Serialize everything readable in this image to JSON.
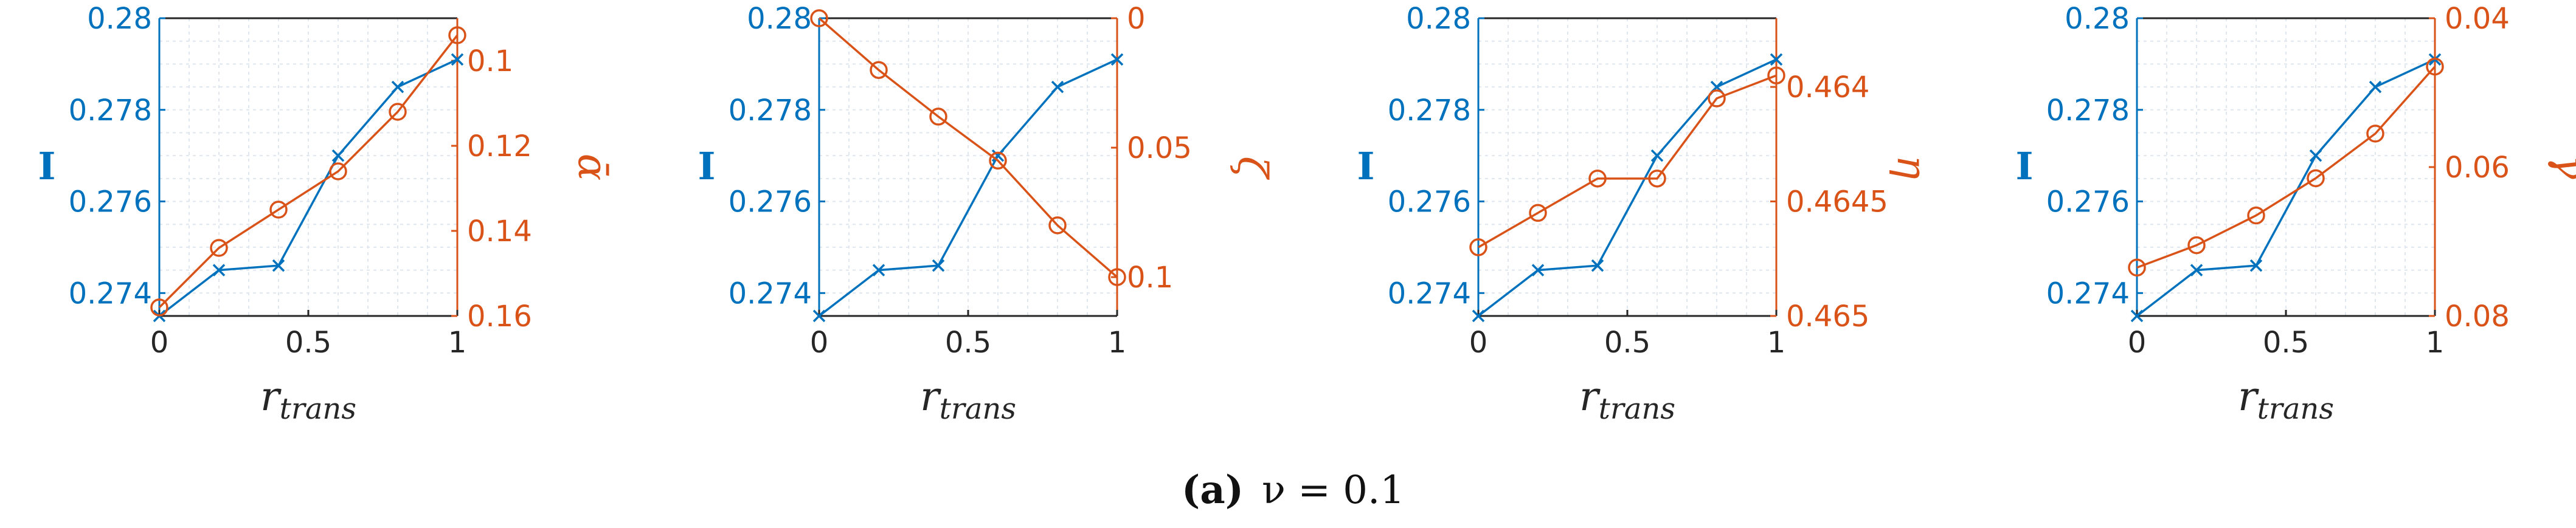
{
  "caption": {
    "label": "(a)",
    "text": "ν = 0.1"
  },
  "colors": {
    "left": "#0072BD",
    "right": "#D95319"
  },
  "chart_data": [
    {
      "type": "line",
      "xlabel": "r_trans",
      "ylabel_left": "I",
      "ylabel_right": "ᾱ",
      "x": [
        0,
        0.2,
        0.4,
        0.6,
        0.8,
        1
      ],
      "xticks": [
        "0",
        "0.5",
        "1"
      ],
      "left_ylim": [
        0.2735,
        0.28
      ],
      "left_yticks": [
        "0.274",
        "0.276",
        "0.278",
        "0.28"
      ],
      "right_ylim": [
        0.16,
        0.09
      ],
      "right_reversed": true,
      "right_yticks": [
        "0.1",
        "0.12",
        "0.14",
        "0.16"
      ],
      "left_marker": "x",
      "right_marker": "o",
      "series": [
        {
          "axis": "left",
          "values": [
            0.2735,
            0.2745,
            0.2746,
            0.277,
            0.2785,
            0.2791
          ]
        },
        {
          "axis": "right",
          "values": [
            0.158,
            0.144,
            0.135,
            0.126,
            0.112,
            0.094
          ]
        }
      ]
    },
    {
      "type": "line",
      "xlabel": "r_trans",
      "ylabel_left": "I",
      "ylabel_right": "ζ",
      "x": [
        0,
        0.2,
        0.4,
        0.6,
        0.8,
        1
      ],
      "xticks": [
        "0",
        "0.5",
        "1"
      ],
      "left_ylim": [
        0.2735,
        0.28
      ],
      "left_yticks": [
        "0.274",
        "0.276",
        "0.278",
        "0.28"
      ],
      "right_ylim": [
        0.115,
        0
      ],
      "right_reversed": true,
      "right_yticks": [
        "0",
        "0.05",
        "0.1"
      ],
      "left_marker": "x",
      "right_marker": "o",
      "series": [
        {
          "axis": "left",
          "values": [
            0.2735,
            0.2745,
            0.2746,
            0.277,
            0.2785,
            0.2791
          ]
        },
        {
          "axis": "right",
          "values": [
            0,
            0.02,
            0.038,
            0.055,
            0.08,
            0.1
          ]
        }
      ]
    },
    {
      "type": "line",
      "xlabel": "r_trans",
      "ylabel_left": "I",
      "ylabel_right": "η",
      "x": [
        0,
        0.2,
        0.4,
        0.6,
        0.8,
        1
      ],
      "xticks": [
        "0",
        "0.5",
        "1"
      ],
      "left_ylim": [
        0.2735,
        0.28
      ],
      "left_yticks": [
        "0.274",
        "0.276",
        "0.278",
        "0.28"
      ],
      "right_ylim": [
        0.465,
        0.4637
      ],
      "right_reversed": true,
      "right_yticks": [
        "0.464",
        "0.4645",
        "0.465"
      ],
      "left_marker": "x",
      "right_marker": "o",
      "series": [
        {
          "axis": "left",
          "values": [
            0.2735,
            0.2745,
            0.2746,
            0.277,
            0.2785,
            0.2791
          ]
        },
        {
          "axis": "right",
          "values": [
            0.4647,
            0.46455,
            0.4644,
            0.4644,
            0.46405,
            0.46395
          ]
        }
      ]
    },
    {
      "type": "line",
      "xlabel": "r_trans",
      "ylabel_left": "I",
      "ylabel_right": "γ",
      "x": [
        0,
        0.2,
        0.4,
        0.6,
        0.8,
        1
      ],
      "xticks": [
        "0",
        "0.5",
        "1"
      ],
      "left_ylim": [
        0.2735,
        0.28
      ],
      "left_yticks": [
        "0.274",
        "0.276",
        "0.278",
        "0.28"
      ],
      "right_ylim": [
        0.08,
        0.04
      ],
      "right_reversed": true,
      "right_yticks": [
        "0.04",
        "0.06",
        "0.08"
      ],
      "left_marker": "x",
      "right_marker": "o",
      "series": [
        {
          "axis": "left",
          "values": [
            0.2735,
            0.2745,
            0.2746,
            0.277,
            0.2785,
            0.2791
          ]
        },
        {
          "axis": "right",
          "values": [
            0.0735,
            0.0705,
            0.0665,
            0.0615,
            0.0555,
            0.0465
          ]
        }
      ]
    }
  ]
}
